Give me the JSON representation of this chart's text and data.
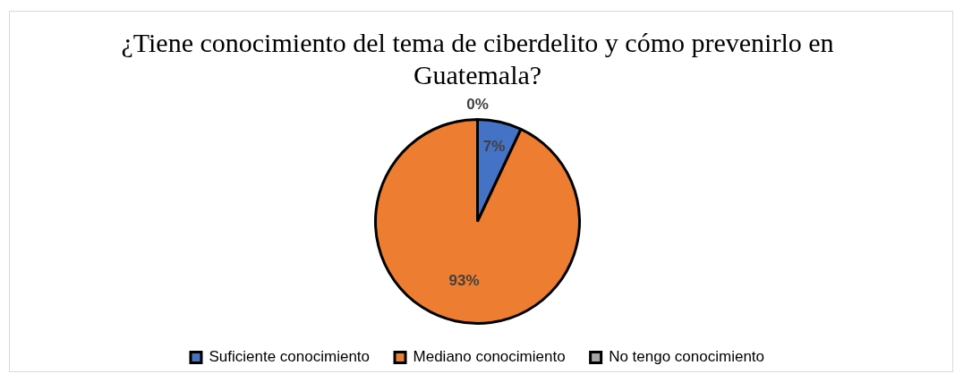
{
  "chart_data": {
    "type": "pie",
    "title": "¿Tiene conocimiento del tema de ciberdelito y cómo prevenirlo en Guatemala?",
    "categories": [
      "Suficiente conocimiento",
      "Mediano conocimiento",
      "No tengo conocimiento"
    ],
    "values": [
      7,
      93,
      0
    ],
    "colors": [
      "#4472c4",
      "#ed7d31",
      "#a5a5a5"
    ],
    "value_labels": [
      "7%",
      "93%",
      "0%"
    ],
    "legend": "bottom"
  }
}
